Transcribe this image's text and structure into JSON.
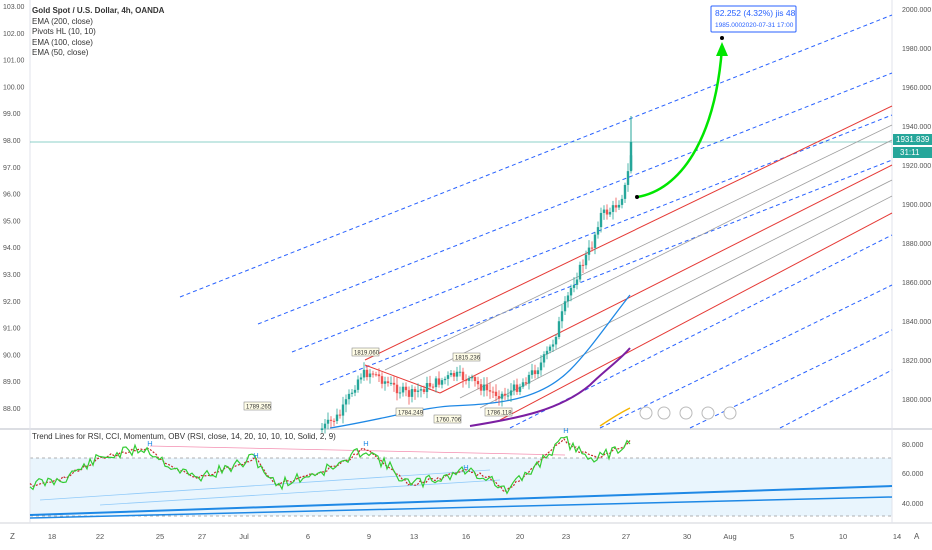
{
  "legend": {
    "title": "Gold Spot / U.S. Dollar, 4h, OANDA",
    "indicators": [
      "EMA (200, close)",
      "Pivots HL (10, 10)",
      "EMA (100, close)",
      "EMA (50, close)"
    ]
  },
  "left_axis": [
    "103.00",
    "102.00",
    "101.00",
    "100.00",
    "99.00",
    "98.00",
    "97.00",
    "96.00",
    "95.00",
    "94.00",
    "93.00",
    "92.00",
    "91.00",
    "90.00",
    "89.00",
    "88.00"
  ],
  "right_axis": [
    "2000.000",
    "1980.000",
    "1960.000",
    "1940.000",
    "1920.000",
    "1900.000",
    "1880.000",
    "1860.000",
    "1840.000",
    "1820.000",
    "1800.000"
  ],
  "price_tag": {
    "value": "1931.839",
    "countdown": "31:11",
    "color": "#26a69a"
  },
  "measure": {
    "line1": "82.252 (4.32%) jis 48",
    "line2": "1985.000",
    "line3": "2020-07-31  17:00"
  },
  "pivots": [
    "1819.060",
    "1815.236",
    "1789.265",
    "1784.249",
    "1786.118",
    "1760.706"
  ],
  "rsi": {
    "label": "Trend Lines for RSI, CCI, Momentum, OBV (RSI, close, 14, 20, 10, 10, 10, Solid, 2, 9)",
    "axis": [
      "80.000",
      "60.000",
      "40.000"
    ],
    "markers": [
      "H",
      "H",
      "H",
      "H",
      "H"
    ]
  },
  "time_axis": {
    "labels": [
      "18",
      "22",
      "25",
      "27",
      "Jul",
      "6",
      "9",
      "13",
      "16",
      "20",
      "23",
      "27",
      "30",
      "Aug",
      "5",
      "10",
      "14"
    ],
    "left_btn": "Z",
    "right_btn": "A"
  },
  "colors": {
    "up": "#26a69a",
    "down": "#ef5350",
    "blue_dash": "#2962ff",
    "red_line": "#e53935",
    "grey_line": "#9e9e9e",
    "arrow": "#00e600",
    "ema50": "#1e88e5",
    "ema100": "#7b1fa2",
    "ema200": "#f4b400",
    "rsi_line": "#33cc33",
    "rsi_signal": "#c62828"
  }
}
